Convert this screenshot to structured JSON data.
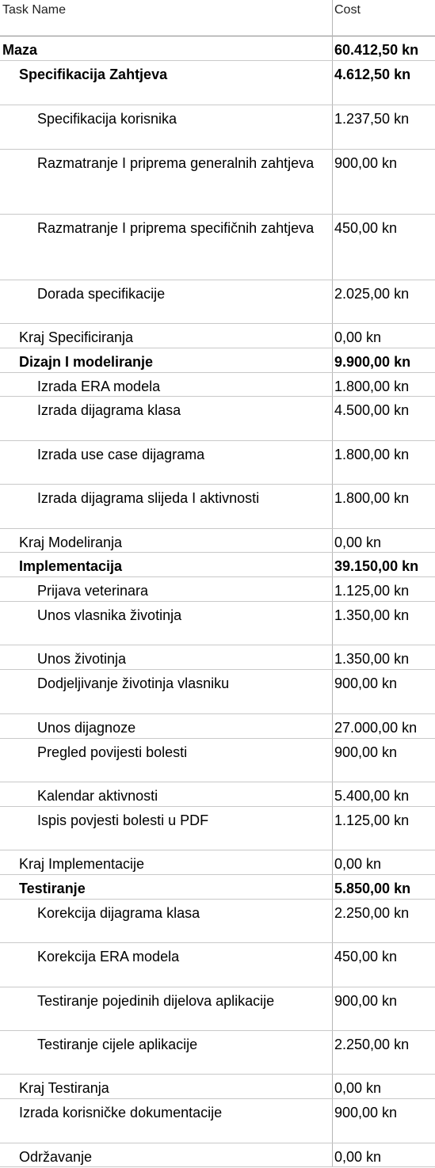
{
  "header": {
    "task_name": "Task Name",
    "cost": "Cost"
  },
  "rows": [
    {
      "name": "Maza",
      "cost": "60.412,50 kn"
    },
    {
      "name": "Specifikacija Zahtjeva",
      "cost": "4.612,50 kn"
    },
    {
      "name": "Specifikacija korisnika",
      "cost": "1.237,50 kn"
    },
    {
      "name": "Razmatranje I priprema generalnih zahtjeva",
      "cost": "900,00 kn"
    },
    {
      "name": "Razmatranje I priprema specifičnih zahtjeva",
      "cost": "450,00 kn"
    },
    {
      "name": "Dorada specifikacije",
      "cost": "2.025,00 kn"
    },
    {
      "name": "Kraj Specificiranja",
      "cost": "0,00 kn"
    },
    {
      "name": "Dizajn I modeliranje",
      "cost": "9.900,00 kn"
    },
    {
      "name": "Izrada ERA modela",
      "cost": "1.800,00 kn"
    },
    {
      "name": "Izrada dijagrama klasa",
      "cost": "4.500,00 kn"
    },
    {
      "name": "Izrada use case dijagrama",
      "cost": "1.800,00 kn"
    },
    {
      "name": "Izrada dijagrama slijeda I aktivnosti",
      "cost": "1.800,00 kn"
    },
    {
      "name": "Kraj Modeliranja",
      "cost": "0,00 kn"
    },
    {
      "name": "Implementacija",
      "cost": "39.150,00 kn"
    },
    {
      "name": "Prijava veterinara",
      "cost": "1.125,00 kn"
    },
    {
      "name": "Unos vlasnika životinja",
      "cost": "1.350,00 kn"
    },
    {
      "name": "Unos životinja",
      "cost": "1.350,00 kn"
    },
    {
      "name": "Dodjeljivanje životinja vlasniku",
      "cost": "900,00 kn"
    },
    {
      "name": "Unos dijagnoze",
      "cost": "27.000,00 kn"
    },
    {
      "name": "Pregled povijesti bolesti",
      "cost": "900,00 kn"
    },
    {
      "name": "Kalendar aktivnosti",
      "cost": "5.400,00 kn"
    },
    {
      "name": "Ispis povjesti bolesti u PDF",
      "cost": "1.125,00 kn"
    },
    {
      "name": "Kraj Implementacije",
      "cost": "0,00 kn"
    },
    {
      "name": "Testiranje",
      "cost": "5.850,00 kn"
    },
    {
      "name": "Korekcija dijagrama klasa",
      "cost": "2.250,00 kn"
    },
    {
      "name": "Korekcija ERA modela",
      "cost": "450,00 kn"
    },
    {
      "name": "Testiranje pojedinih dijelova aplikacije",
      "cost": "900,00 kn"
    },
    {
      "name": "Testiranje cijele aplikacije",
      "cost": "2.250,00 kn"
    },
    {
      "name": "Kraj Testiranja",
      "cost": "0,00 kn"
    },
    {
      "name": "Izrada korisničke dokumentacije",
      "cost": "900,00 kn"
    },
    {
      "name": "Održavanje",
      "cost": "0,00 kn"
    }
  ]
}
